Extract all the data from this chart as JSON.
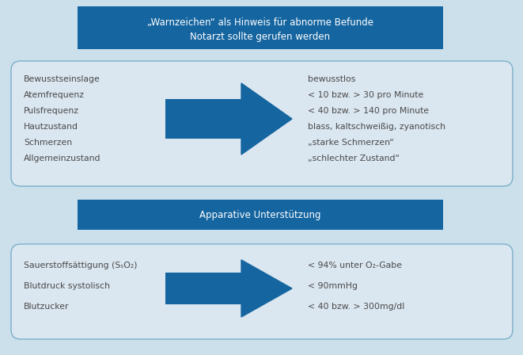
{
  "bg_color": "#cce0ec",
  "title_box_color": "#1565a0",
  "title_box_text_color": "#ffffff",
  "title_line1": "„Warnzeichen“ als Hinweis für abnorme Befunde",
  "title_line2": "Notarzt sollte gerufen werden",
  "box1_bg": "#dae6f0",
  "box1_border": "#7aafc8",
  "box1_left_lines": [
    "Bewusstseinslage",
    "Atemfrequenz",
    "Pulsfrequenz",
    "Hautzustand",
    "Schmerzen",
    "Allgemeinzustand"
  ],
  "box1_right_lines": [
    "bewusstlos",
    "< 10 bzw. > 30 pro Minute",
    "< 40 bzw. > 140 pro Minute",
    "blass, kaltschweißig, zyanotisch",
    "„starke Schmerzen“",
    "„schlechter Zustand“"
  ],
  "arrow_color": "#1565a0",
  "mid_box_color": "#1565a0",
  "mid_box_text": "Apparative Unterstützung",
  "mid_box_text_color": "#ffffff",
  "box2_bg": "#dae6f0",
  "box2_border": "#7aafc8",
  "box2_left_lines": [
    "Sauerstoffsättigung (SₛO₂)",
    "Blutdruck systolisch",
    "Blutzucker"
  ],
  "box2_right_lines": [
    "< 94% unter O₂-Gabe",
    "< 90mmHg",
    "< 40 bzw. > 300mg/dl"
  ],
  "text_color": "#4a4a4a",
  "font_size_title": 8.5,
  "font_size_body": 7.8
}
